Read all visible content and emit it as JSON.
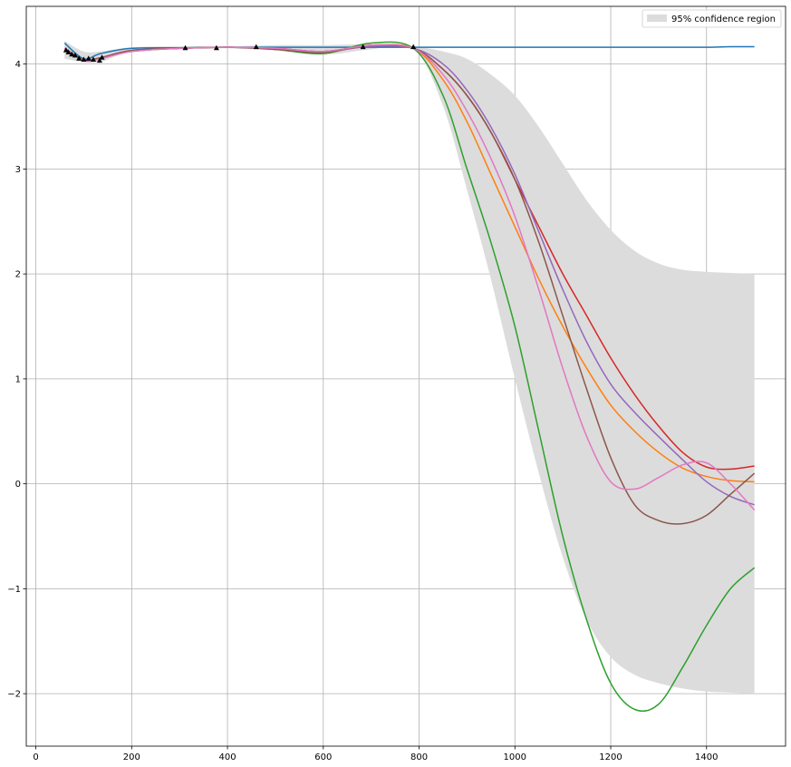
{
  "chart_data": {
    "type": "line",
    "title": "",
    "xlabel": "",
    "ylabel": "",
    "xlim": [
      -20,
      1565
    ],
    "ylim": [
      -2.5,
      4.55
    ],
    "grid": true,
    "legend": {
      "placement": "top-right",
      "entries": [
        {
          "label": "95% confidence region",
          "color": "#dcdcdc"
        }
      ]
    },
    "x_ticks": [
      0,
      200,
      400,
      600,
      800,
      1000,
      1200,
      1400
    ],
    "x_tick_labels": [
      "0",
      "200",
      "400",
      "600",
      "800",
      "1000",
      "1200",
      "1400"
    ],
    "y_ticks": [
      -2,
      -1,
      0,
      1,
      2,
      3,
      4
    ],
    "y_tick_labels": [
      "−2",
      "−1",
      "0",
      "1",
      "2",
      "3",
      "4"
    ],
    "observations": {
      "marker": "triangle",
      "x": [
        63,
        68,
        75,
        82,
        90,
        100,
        110,
        120,
        133,
        138,
        312,
        377,
        460,
        683,
        788
      ],
      "y": [
        4.13,
        4.11,
        4.09,
        4.08,
        4.05,
        4.04,
        4.05,
        4.04,
        4.03,
        4.06,
        4.15,
        4.15,
        4.16,
        4.16,
        4.16
      ]
    },
    "confidence_band": {
      "name": "95% confidence region",
      "color": "#dcdcdc",
      "x": [
        60,
        100,
        135,
        200,
        300,
        400,
        500,
        600,
        700,
        788,
        850,
        900,
        950,
        1000,
        1050,
        1100,
        1150,
        1200,
        1250,
        1300,
        1350,
        1400,
        1450,
        1500
      ],
      "lower": [
        4.05,
        4.02,
        4.02,
        4.12,
        4.14,
        4.15,
        4.13,
        4.09,
        4.14,
        4.15,
        3.6,
        2.8,
        1.95,
        1.0,
        0.1,
        -0.7,
        -1.3,
        -1.65,
        -1.82,
        -1.9,
        -1.95,
        -1.98,
        -1.99,
        -2.0
      ],
      "upper": [
        4.22,
        4.12,
        4.12,
        4.16,
        4.17,
        4.17,
        4.18,
        4.18,
        4.19,
        4.17,
        4.12,
        4.05,
        3.9,
        3.7,
        3.4,
        3.05,
        2.7,
        2.42,
        2.22,
        2.1,
        2.04,
        2.02,
        2.01,
        2.0
      ]
    },
    "x": [
      60,
      100,
      135,
      200,
      300,
      400,
      500,
      600,
      700,
      788,
      850,
      900,
      950,
      1000,
      1050,
      1100,
      1150,
      1200,
      1250,
      1300,
      1350,
      1400,
      1450,
      1500
    ],
    "series": [
      {
        "color": "#1f77b4",
        "values": [
          4.2,
          4.05,
          4.1,
          4.15,
          4.155,
          4.16,
          4.16,
          4.16,
          4.16,
          4.16,
          4.16,
          4.16,
          4.16,
          4.16,
          4.16,
          4.16,
          4.16,
          4.16,
          4.16,
          4.16,
          4.16,
          4.16,
          4.165,
          4.165
        ]
      },
      {
        "color": "#ff7f0e",
        "values": [
          4.15,
          4.04,
          4.06,
          4.13,
          4.15,
          4.16,
          4.15,
          4.12,
          4.18,
          4.15,
          3.85,
          3.45,
          2.95,
          2.45,
          1.95,
          1.5,
          1.1,
          0.75,
          0.5,
          0.3,
          0.15,
          0.07,
          0.03,
          0.02
        ]
      },
      {
        "color": "#2ca02c",
        "values": [
          4.15,
          4.04,
          4.06,
          4.12,
          4.15,
          4.16,
          4.14,
          4.1,
          4.2,
          4.15,
          3.7,
          3.0,
          2.3,
          1.5,
          0.5,
          -0.5,
          -1.3,
          -1.9,
          -2.15,
          -2.1,
          -1.75,
          -1.35,
          -1.0,
          -0.8
        ]
      },
      {
        "color": "#d62728",
        "values": [
          4.15,
          4.04,
          4.06,
          4.13,
          4.15,
          4.16,
          4.15,
          4.12,
          4.17,
          4.15,
          3.95,
          3.7,
          3.35,
          2.9,
          2.45,
          2.0,
          1.6,
          1.2,
          0.85,
          0.55,
          0.3,
          0.16,
          0.14,
          0.17
        ]
      },
      {
        "color": "#9467bd",
        "values": [
          4.15,
          4.04,
          4.06,
          4.13,
          4.15,
          4.16,
          4.15,
          4.12,
          4.17,
          4.15,
          4.0,
          3.75,
          3.4,
          2.95,
          2.4,
          1.85,
          1.35,
          0.95,
          0.68,
          0.45,
          0.23,
          0.02,
          -0.12,
          -0.2
        ]
      },
      {
        "color": "#8c564b",
        "values": [
          4.15,
          4.04,
          4.06,
          4.13,
          4.15,
          4.16,
          4.14,
          4.11,
          4.18,
          4.15,
          3.95,
          3.7,
          3.35,
          2.9,
          2.3,
          1.6,
          0.9,
          0.25,
          -0.2,
          -0.35,
          -0.38,
          -0.3,
          -0.1,
          0.1
        ]
      },
      {
        "color": "#e377c2",
        "values": [
          4.15,
          4.03,
          4.05,
          4.12,
          4.15,
          4.16,
          4.15,
          4.12,
          4.18,
          4.15,
          3.9,
          3.55,
          3.1,
          2.55,
          1.85,
          1.1,
          0.45,
          0.02,
          -0.05,
          0.06,
          0.18,
          0.2,
          0.0,
          -0.25
        ]
      }
    ]
  }
}
